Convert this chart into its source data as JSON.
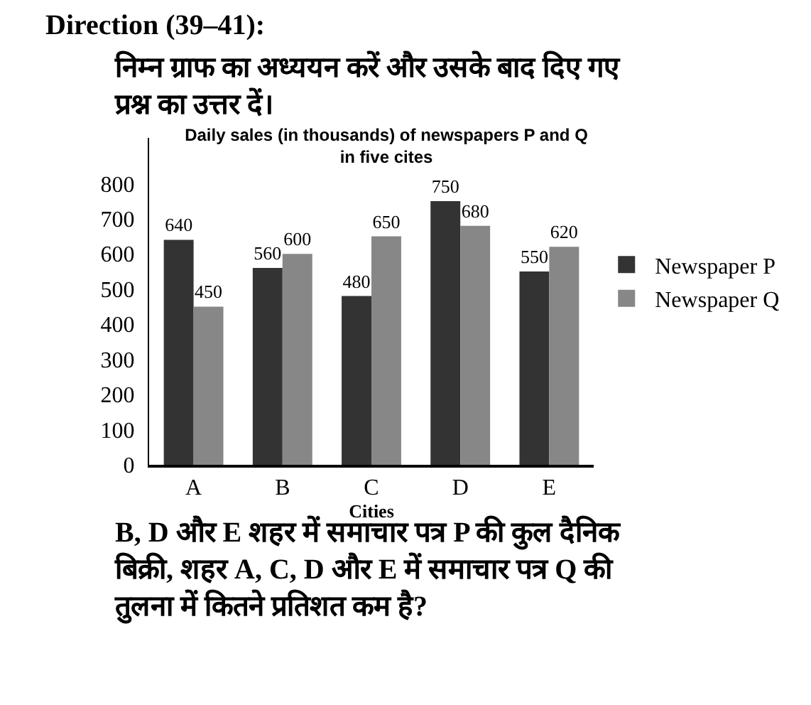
{
  "chart_data": {
    "type": "bar",
    "title": "Daily sales (in thousands) of newspapers P and Q in five cites",
    "xlabel": "Cities",
    "annotations": [
      "Direction (39–41):",
      "निम्न ग्राफ का अध्ययन करें और उसके बाद दिए गए प्रश्न का उत्तर दें।",
      "B, D और E शहर में समाचार पत्र P की कुल दैनिक बिक्री, शहर A, C, D और E में समाचार पत्र Q की तुलना में कितने प्रतिशत कम है?"
    ],
    "categories": [
      "A",
      "B",
      "C",
      "D",
      "E"
    ],
    "series": [
      {
        "name": "Newspaper P",
        "color": "#333333",
        "values": [
          640,
          560,
          480,
          750,
          550
        ]
      },
      {
        "name": "Newspaper Q",
        "color": "#878787",
        "values": [
          450,
          600,
          650,
          680,
          620
        ]
      }
    ],
    "ylim": [
      0,
      930
    ],
    "yticks": [
      0,
      100,
      200,
      300,
      400,
      500,
      600,
      700,
      800
    ],
    "data_labels": true,
    "legend": "right"
  }
}
